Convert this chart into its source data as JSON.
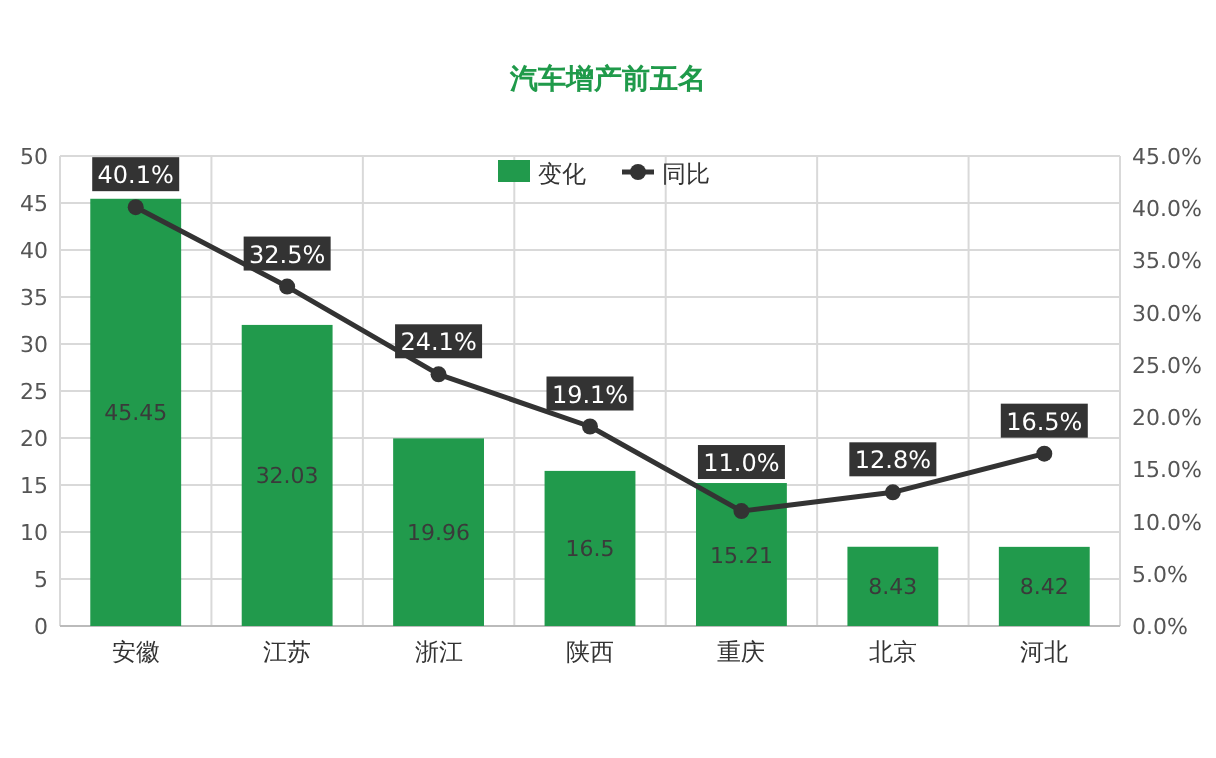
{
  "chart_data": {
    "type": "bar",
    "title": "汽车增产前五名",
    "categories": [
      "安徽",
      "江苏",
      "浙江",
      "陕西",
      "重庆",
      "北京",
      "河北"
    ],
    "series": [
      {
        "name": "变化",
        "color": "#219a4c",
        "values": [
          45.45,
          32.03,
          19.96,
          16.5,
          15.21,
          8.43,
          8.42
        ],
        "value_labels": [
          "45.45",
          "32.03",
          "19.96",
          "16.5",
          "15.21",
          "8.43",
          "8.42"
        ]
      },
      {
        "name": "同比",
        "type": "line",
        "axis": "y2",
        "color": "#333333",
        "marker": "circle",
        "values": [
          40.1,
          32.5,
          24.1,
          19.1,
          11.0,
          12.8,
          16.5
        ],
        "value_labels": [
          "40.1%",
          "32.5%",
          "24.1%",
          "19.1%",
          "11.0%",
          "12.8%",
          "16.5%"
        ]
      }
    ],
    "ylim": [
      0,
      50
    ],
    "yticks": [
      0,
      5,
      10,
      15,
      20,
      25,
      30,
      35,
      40,
      45,
      50
    ],
    "y2lim": [
      0,
      45
    ],
    "y2ticks": [
      {
        "value": 0,
        "label": "0.0%"
      },
      {
        "value": 5,
        "label": "5.0%"
      },
      {
        "value": 10,
        "label": "10.0%"
      },
      {
        "value": 15,
        "label": "15.0%"
      },
      {
        "value": 20,
        "label": "20.0%"
      },
      {
        "value": 25,
        "label": "25.0%"
      },
      {
        "value": 30,
        "label": "30.0%"
      },
      {
        "value": 35,
        "label": "35.0%"
      },
      {
        "value": 40,
        "label": "40.0%"
      },
      {
        "value": 45,
        "label": "45.0%"
      }
    ],
    "grid": true,
    "legend": "top"
  }
}
